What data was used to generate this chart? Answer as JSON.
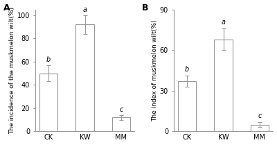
{
  "panel_A": {
    "title": "A",
    "ylabel": "The incidence of the muskmelon wilt(%)",
    "categories": [
      "CK",
      "KW",
      "MM"
    ],
    "values": [
      50,
      92,
      12
    ],
    "errors": [
      7,
      8,
      2
    ],
    "letters": [
      "b",
      "a",
      "c"
    ],
    "ylim": [
      0,
      105
    ],
    "yticks": [
      0,
      20,
      40,
      60,
      80,
      100
    ]
  },
  "panel_B": {
    "title": "B",
    "ylabel": "The index of muskmelon wilt(%)",
    "categories": [
      "CK",
      "KW",
      "MM"
    ],
    "values": [
      37,
      68,
      5
    ],
    "errors": [
      4,
      8,
      2
    ],
    "letters": [
      "b",
      "a",
      "c"
    ],
    "ylim": [
      0,
      90
    ],
    "yticks": [
      0,
      30,
      60,
      90
    ]
  },
  "bar_color": "#ffffff",
  "bar_edgecolor": "#999999",
  "error_color": "#999999",
  "letter_fontsize": 7,
  "ylabel_fontsize": 6.5,
  "tick_fontsize": 7,
  "title_fontsize": 9,
  "background_color": "#ffffff"
}
